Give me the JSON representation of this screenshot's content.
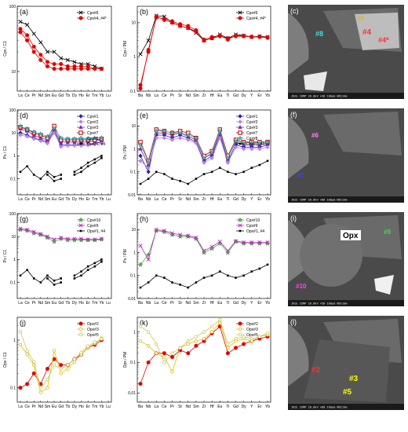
{
  "figure": {
    "panels": [
      {
        "id": "a",
        "label": "(a)",
        "ylabel": "Cpx / C1",
        "ticks": [
          "10",
          "100"
        ]
      },
      {
        "id": "b",
        "label": "(b)",
        "ylabel": "Cpx / PM",
        "ticks": [
          "0.1",
          "1",
          "10"
        ]
      },
      {
        "id": "c",
        "label": "(c)"
      },
      {
        "id": "d",
        "label": "(d)",
        "ylabel": "Px / C1",
        "ticks": [
          "0.1",
          "1",
          "10",
          "100"
        ]
      },
      {
        "id": "e",
        "label": "(e)",
        "ylabel": "Px / PM",
        "ticks": [
          "0.01",
          "0.1",
          "1",
          "10"
        ]
      },
      {
        "id": "f",
        "label": "(f)"
      },
      {
        "id": "g",
        "label": "(g)",
        "ylabel": "Px / C1",
        "ticks": [
          "0.1",
          "1",
          "10",
          "100"
        ]
      },
      {
        "id": "h",
        "label": "(h)",
        "ylabel": "Px / PM",
        "ticks": [
          "0.01",
          "0.1",
          "1",
          "10"
        ]
      },
      {
        "id": "i",
        "label": "(i)"
      },
      {
        "id": "j",
        "label": "(j)",
        "ylabel": "Opx / C1",
        "ticks": [
          "0.1",
          "1"
        ]
      },
      {
        "id": "k",
        "label": "(k)",
        "ylabel": "Opx / PM",
        "ticks": [
          "0.01",
          "0.1",
          "1"
        ]
      },
      {
        "id": "l",
        "label": "(l)"
      }
    ],
    "sem_footer": [
      "JEOL COMP 20.0kV ×40 100µm WD11mm",
      "JEOL COMP 20.0kV ×80 100µm WD11mm",
      "JEOL COMP 20.0kV ×50 100µm WD11mm",
      "JEOL COMP 20.0kV ×80 100µm WD11mm"
    ],
    "sem_labels": {
      "c": [
        "#6",
        "#8",
        "#4",
        "#4*"
      ],
      "f": [
        "#6",
        "#7"
      ],
      "i": [
        "Opx",
        "#9",
        "#10"
      ],
      "l": [
        "#2",
        "#3",
        "#5"
      ]
    }
  },
  "chart_data": [
    {
      "panel": "a",
      "type": "line",
      "scale": "log",
      "ylim": [
        5,
        100
      ],
      "categories": [
        "La",
        "Ce",
        "Pr",
        "Nd",
        "Sm",
        "Eu",
        "Gd",
        "Tb",
        "Dy",
        "Ho",
        "Er",
        "Tm",
        "Yb",
        "Lu"
      ],
      "series": [
        {
          "name": "Cpx#6",
          "color": "#000000",
          "marker": "x",
          "values": [
            58,
            52,
            38,
            28,
            20,
            20,
            16,
            15,
            14,
            13,
            13,
            12,
            11,
            null
          ]
        },
        {
          "name": "Cpx#4, #4*",
          "color": "#e00000",
          "marker": "circle",
          "values": [
            40,
            30,
            20,
            15,
            12,
            11,
            11,
            11,
            11,
            11,
            11,
            11,
            11,
            null
          ]
        },
        {
          "name": "",
          "color": "#e00000",
          "marker": "circle",
          "values": [
            45,
            36,
            24,
            18,
            14,
            13,
            13,
            12,
            12,
            12,
            12,
            11,
            11,
            null
          ]
        }
      ]
    },
    {
      "panel": "b",
      "type": "line",
      "scale": "log",
      "ylim": [
        0.1,
        30
      ],
      "categories": [
        "Ba",
        "Nb",
        "La",
        "Ce",
        "Pr",
        "Sr",
        "Nd",
        "Sm",
        "Zr",
        "Hf",
        "Eu",
        "Ti",
        "Gd",
        "Dy",
        "Y",
        "Er",
        "Yb"
      ],
      "series": [
        {
          "name": "Cpx#6",
          "color": "#000000",
          "marker": "x",
          "values": [
            1.2,
            3,
            16,
            15,
            10,
            8,
            7,
            5,
            3,
            3.5,
            4.5,
            3.5,
            4.5,
            4.2,
            3.8,
            4,
            3.8
          ]
        },
        {
          "name": "Cpx#4, #4*",
          "color": "#e00000",
          "marker": "circle",
          "values": [
            0.12,
            1.6,
            14,
            13,
            11,
            9,
            8,
            6,
            3,
            3.5,
            4,
            3.5,
            4,
            4,
            3.8,
            3.8,
            3.6
          ]
        },
        {
          "name": "",
          "color": "#e00000",
          "marker": "circle",
          "values": [
            0.15,
            1.4,
            15,
            12,
            10,
            8,
            7,
            5.5,
            3.2,
            3.8,
            4.2,
            3.2,
            4.2,
            4.1,
            3.9,
            3.9,
            3.7
          ]
        }
      ]
    },
    {
      "panel": "d",
      "type": "line",
      "scale": "log",
      "ylim": [
        0.02,
        100
      ],
      "categories": [
        "La",
        "Ce",
        "Pr",
        "Nd",
        "Sm",
        "Eu",
        "Gd",
        "Tb",
        "Dy",
        "Ho",
        "Er",
        "Tm",
        "Yb",
        "Lu"
      ],
      "series": [
        {
          "name": "Cpx#1",
          "color": "#2020c0",
          "marker": "diamond",
          "values": [
            10,
            8,
            6,
            5,
            4,
            12,
            3,
            3,
            3,
            3,
            3,
            3.5,
            4,
            null
          ]
        },
        {
          "name": "Cpx#2",
          "color": "#c080e0",
          "marker": "diamond",
          "values": [
            8,
            7,
            5.5,
            4.5,
            3.5,
            10,
            2.5,
            2.8,
            2.8,
            2.8,
            3,
            3.2,
            3.5,
            null
          ]
        },
        {
          "name": "Cpx#3",
          "color": "#8030a0",
          "marker": "triangle",
          "values": [
            15,
            12,
            8,
            6,
            5,
            14,
            4,
            4,
            4,
            4,
            4,
            4.5,
            5,
            null
          ]
        },
        {
          "name": "Cpx#7",
          "color": "#c00000",
          "marker": "square",
          "values": [
            18,
            14,
            10,
            8,
            6,
            20,
            5,
            5,
            5,
            5,
            5,
            5,
            5.5,
            null
          ]
        },
        {
          "name": "Cpx#8",
          "color": "#40c0c0",
          "marker": "star",
          "values": [
            20,
            15,
            11,
            9,
            7,
            16,
            6,
            5.5,
            5.5,
            5.5,
            5.5,
            6,
            6,
            null
          ]
        },
        {
          "name": "Opx#1, #4",
          "color": "#000000",
          "marker": "square-small",
          "values": [
            0.2,
            0.35,
            0.15,
            0.1,
            0.2,
            0.12,
            0.15,
            null,
            0.2,
            0.3,
            0.5,
            0.7,
            1.0,
            null
          ]
        },
        {
          "name": "",
          "color": "#000000",
          "marker": "square-small",
          "values": [
            null,
            null,
            null,
            null,
            0.15,
            0.08,
            0.1,
            null,
            0.15,
            0.2,
            0.35,
            0.5,
            0.8,
            null
          ]
        }
      ]
    },
    {
      "panel": "e",
      "type": "line",
      "scale": "log",
      "ylim": [
        0.01,
        50
      ],
      "categories": [
        "Ba",
        "Nb",
        "La",
        "Ce",
        "Pr",
        "Sr",
        "Nd",
        "Sm",
        "Zr",
        "Hf",
        "Eu",
        "Ti",
        "Gd",
        "Dy",
        "Y",
        "Er",
        "Yb"
      ],
      "series": [
        {
          "name": "Cpx#1",
          "color": "#2020c0",
          "marker": "diamond",
          "values": [
            0.5,
            0.1,
            4,
            4,
            3,
            4,
            3,
            2,
            0.3,
            0.5,
            4,
            0.3,
            1.5,
            1.2,
            1.2,
            1.2,
            1.5
          ]
        },
        {
          "name": "Cpx#2",
          "color": "#c080e0",
          "marker": "diamond",
          "values": [
            0.3,
            0.15,
            3,
            3,
            2.5,
            3,
            2.5,
            1.8,
            0.25,
            0.4,
            3,
            0.25,
            1.2,
            1,
            1,
            1,
            1.2
          ]
        },
        {
          "name": "Cpx#3",
          "color": "#8030a0",
          "marker": "triangle",
          "values": [
            1,
            0.2,
            5,
            5,
            4,
            5,
            3.5,
            2.5,
            0.4,
            0.6,
            5,
            0.4,
            2,
            1.5,
            1.5,
            1.5,
            1.8
          ]
        },
        {
          "name": "Cpx#7",
          "color": "#c00000",
          "marker": "square",
          "values": [
            2,
            0.3,
            7,
            6,
            5,
            6,
            5,
            3,
            0.5,
            0.8,
            7,
            0.5,
            2.5,
            2,
            2,
            2,
            2
          ]
        },
        {
          "name": "Cpx#8",
          "color": "#40c0c0",
          "marker": "star",
          "values": [
            1.5,
            0.25,
            6,
            6,
            5,
            5,
            4,
            3,
            0.4,
            0.7,
            6,
            0.4,
            2.2,
            1.8,
            1.8,
            1.8,
            2
          ]
        },
        {
          "name": "Opx#1, #4",
          "color": "#000000",
          "marker": "square-small",
          "values": [
            0.03,
            0.05,
            0.1,
            0.08,
            0.05,
            0.04,
            0.03,
            0.05,
            0.08,
            0.1,
            0.15,
            0.1,
            0.08,
            0.1,
            0.15,
            0.2,
            0.3
          ]
        }
      ]
    },
    {
      "panel": "g",
      "type": "line",
      "scale": "log",
      "ylim": [
        0.02,
        100
      ],
      "categories": [
        "La",
        "Ce",
        "Pr",
        "Nd",
        "Sm",
        "Eu",
        "Gd",
        "Tb",
        "Dy",
        "Ho",
        "Er",
        "Tm",
        "Yb",
        "Lu"
      ],
      "series": [
        {
          "name": "Cpx#10",
          "color": "#40c040",
          "marker": "star",
          "values": [
            20,
            18,
            14,
            12,
            9,
            6,
            8,
            7,
            7,
            7,
            7,
            7,
            7.5,
            null
          ]
        },
        {
          "name": "Cpx#9",
          "color": "#c020c0",
          "marker": "x",
          "values": [
            22,
            20,
            16,
            13,
            10,
            7.5,
            9,
            8,
            8,
            8,
            7.5,
            7.5,
            8,
            null
          ]
        },
        {
          "name": "Opx#1, #4",
          "color": "#000000",
          "marker": "square-small",
          "values": [
            0.2,
            0.35,
            0.15,
            0.1,
            0.2,
            0.12,
            0.15,
            null,
            0.2,
            0.3,
            0.5,
            0.7,
            1.0,
            null
          ]
        },
        {
          "name": "",
          "color": "#000000",
          "marker": "square-small",
          "values": [
            null,
            null,
            null,
            null,
            0.15,
            0.08,
            0.1,
            null,
            0.15,
            0.2,
            0.35,
            0.5,
            0.8,
            null
          ]
        }
      ]
    },
    {
      "panel": "h",
      "type": "line",
      "scale": "log",
      "ylim": [
        0.01,
        50
      ],
      "categories": [
        "Ba",
        "Nb",
        "La",
        "Ce",
        "Pr",
        "Sr",
        "Nd",
        "Sm",
        "Zr",
        "Hf",
        "Eu",
        "Ti",
        "Gd",
        "Dy",
        "Y",
        "Er",
        "Yb"
      ],
      "series": [
        {
          "name": "Cpx#10",
          "color": "#40c040",
          "marker": "star",
          "values": [
            0.3,
            0.8,
            9,
            8,
            6,
            5,
            5,
            4,
            1,
            1.5,
            2.5,
            1,
            3,
            2.5,
            2.5,
            2.5,
            2.5
          ]
        },
        {
          "name": "Cpx#9",
          "color": "#c020c0",
          "marker": "x",
          "values": [
            2,
            0.5,
            10,
            9,
            7,
            6,
            5.5,
            4.5,
            1.2,
            1.8,
            3,
            1.2,
            3.2,
            2.8,
            2.8,
            2.8,
            2.8
          ]
        },
        {
          "name": "Opx#1, #4",
          "color": "#000000",
          "marker": "square-small",
          "values": [
            0.03,
            0.05,
            0.1,
            0.08,
            0.05,
            0.04,
            0.03,
            0.05,
            0.08,
            0.1,
            0.15,
            0.1,
            0.08,
            0.1,
            0.15,
            0.2,
            0.3
          ]
        }
      ]
    },
    {
      "panel": "j",
      "type": "line",
      "scale": "log",
      "ylim": [
        0.05,
        3
      ],
      "categories": [
        "La",
        "Ce",
        "Pr",
        "Nd",
        "Sm",
        "Eu",
        "Gd",
        "Tb",
        "Dy",
        "Ho",
        "Er",
        "Tm",
        "Yb",
        "Lu"
      ],
      "series": [
        {
          "name": "Opx#2",
          "color": "#e00000",
          "marker": "circle",
          "values": [
            0.1,
            0.12,
            0.2,
            0.12,
            0.25,
            0.4,
            0.3,
            0.3,
            0.4,
            0.5,
            0.7,
            0.8,
            1.0,
            null
          ]
        },
        {
          "name": "Opx#3",
          "color": "#e0c000",
          "marker": "circle-open",
          "values": [
            0.8,
            0.5,
            0.3,
            0.08,
            0.1,
            0.6,
            0.2,
            0.25,
            0.35,
            0.5,
            0.7,
            0.85,
            1.1,
            null
          ]
        },
        {
          "name": "Opx#5",
          "color": "#c8c860",
          "marker": "circle-open",
          "values": [
            1.5,
            0.6,
            0.35,
            0.1,
            0.15,
            0.3,
            0.25,
            0.3,
            0.4,
            0.55,
            0.75,
            0.9,
            1.05,
            null
          ]
        }
      ]
    },
    {
      "panel": "k",
      "type": "line",
      "scale": "log",
      "ylim": [
        0.005,
        3
      ],
      "categories": [
        "Ba",
        "Nb",
        "La",
        "Ce",
        "Pr",
        "Sr",
        "Nd",
        "Sm",
        "Zr",
        "Hf",
        "Eu",
        "Ti",
        "Gd",
        "Dy",
        "Y",
        "Er",
        "Yb"
      ],
      "series": [
        {
          "name": "Opx#2",
          "color": "#e00000",
          "marker": "circle",
          "values": [
            0.02,
            0.1,
            0.2,
            0.2,
            0.15,
            0.25,
            0.2,
            0.35,
            0.5,
            0.9,
            1.5,
            0.2,
            0.3,
            0.4,
            0.5,
            0.6,
            0.7
          ]
        },
        {
          "name": "Opx#3",
          "color": "#e0c000",
          "marker": "circle-open",
          "values": [
            0.5,
            0.35,
            0.2,
            0.15,
            0.05,
            0.3,
            0.4,
            0.5,
            0.6,
            1,
            2,
            0.3,
            0.5,
            0.6,
            0.5,
            0.7,
            0.8
          ]
        },
        {
          "name": "Opx#5",
          "color": "#c8c860",
          "marker": "circle-open",
          "values": [
            1.5,
            1,
            0.4,
            0.1,
            0.2,
            0.3,
            0.5,
            0.7,
            1,
            1.5,
            2.5,
            0.4,
            0.6,
            0.7,
            0.6,
            0.7,
            0.9
          ]
        }
      ]
    }
  ]
}
